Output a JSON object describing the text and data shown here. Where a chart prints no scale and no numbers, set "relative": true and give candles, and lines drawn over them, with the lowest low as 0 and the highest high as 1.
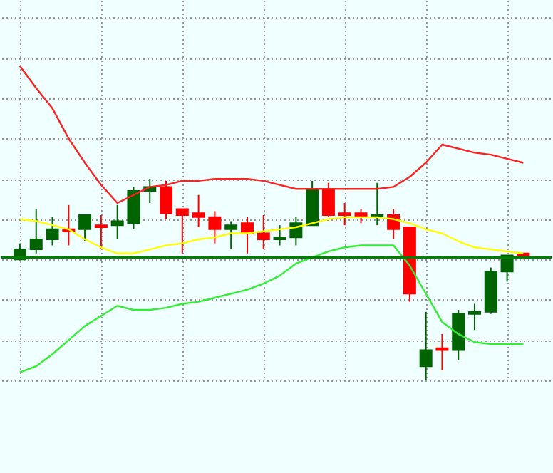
{
  "chart_data": {
    "type": "candlestick",
    "relative": true,
    "grid": true,
    "tick_labels": false,
    "categories": [
      null,
      null,
      null,
      null,
      null,
      null,
      null,
      null,
      null,
      null,
      null,
      null,
      null,
      null,
      null,
      null,
      null,
      null,
      null,
      null,
      null,
      null,
      null,
      null,
      null,
      null,
      null,
      null,
      null,
      null,
      null,
      null
    ],
    "ohlc": [
      [
        0.6,
        0.68,
        0.6,
        0.65
      ],
      [
        0.65,
        0.85,
        0.63,
        0.7
      ],
      [
        0.7,
        0.81,
        0.67,
        0.75
      ],
      [
        0.75,
        0.87,
        0.67,
        0.74
      ],
      [
        0.75,
        0.82,
        0.69,
        0.82
      ],
      [
        0.77,
        0.82,
        0.65,
        0.76
      ],
      [
        0.77,
        0.87,
        0.7,
        0.79
      ],
      [
        0.78,
        0.96,
        0.75,
        0.94
      ],
      [
        0.94,
        1.0,
        0.88,
        0.96
      ],
      [
        0.96,
        0.99,
        0.8,
        0.83
      ],
      [
        0.85,
        0.85,
        0.63,
        0.82
      ],
      [
        0.83,
        0.92,
        0.76,
        0.81
      ],
      [
        0.81,
        0.84,
        0.68,
        0.75
      ],
      [
        0.75,
        0.79,
        0.65,
        0.77
      ],
      [
        0.78,
        0.81,
        0.63,
        0.73
      ],
      [
        0.73,
        0.82,
        0.65,
        0.7
      ],
      [
        0.7,
        0.77,
        0.67,
        0.71
      ],
      [
        0.71,
        0.81,
        0.67,
        0.78
      ],
      [
        0.77,
        0.99,
        0.77,
        0.95
      ],
      [
        0.95,
        0.98,
        0.81,
        0.82
      ],
      [
        0.83,
        0.88,
        0.77,
        0.82
      ],
      [
        0.83,
        0.85,
        0.78,
        0.81
      ],
      [
        0.81,
        0.98,
        0.77,
        0.82
      ],
      [
        0.82,
        0.85,
        0.7,
        0.75
      ],
      [
        0.76,
        0.76,
        0.39,
        0.43
      ],
      [
        0.07,
        0.34,
        0.0,
        0.15
      ],
      [
        0.16,
        0.23,
        0.05,
        0.15
      ],
      [
        0.15,
        0.35,
        0.1,
        0.33
      ],
      [
        0.33,
        0.38,
        0.25,
        0.34
      ],
      [
        0.34,
        0.56,
        0.33,
        0.54
      ],
      [
        0.54,
        0.62,
        0.49,
        0.62
      ],
      [
        0.63,
        0.63,
        0.6,
        0.62
      ]
    ],
    "colors": [
      "#006400",
      "#006400",
      "#006400",
      "#ff0000",
      "#006400",
      "#ff0000",
      "#006400",
      "#006400",
      "#006400",
      "#ff0000",
      "#ff0000",
      "#ff0000",
      "#ff0000",
      "#006400",
      "#ff0000",
      "#ff0000",
      "#006400",
      "#006400",
      "#006400",
      "#ff0000",
      "#ff0000",
      "#ff0000",
      "#006400",
      "#ff0000",
      "#ff0000",
      "#006400",
      "#ff0000",
      "#006400",
      "#006400",
      "#006400",
      "#006400",
      "#ff0000"
    ],
    "series": [
      {
        "type": "line",
        "color": "#ff2020",
        "values": [
          1.56,
          1.45,
          1.35,
          1.2,
          1.08,
          0.97,
          0.88,
          0.92,
          0.96,
          0.97,
          0.99,
          0.99,
          1.0,
          1.0,
          1.0,
          0.99,
          0.97,
          0.95,
          0.95,
          0.95,
          0.95,
          0.95,
          0.95,
          0.96,
          1.01,
          1.08,
          1.17,
          1.15,
          1.13,
          1.12,
          1.1,
          1.08
        ]
      },
      {
        "type": "line",
        "color": "#ffff00",
        "values": [
          0.8,
          0.79,
          0.77,
          0.75,
          0.7,
          0.66,
          0.63,
          0.63,
          0.65,
          0.67,
          0.68,
          0.7,
          0.71,
          0.73,
          0.73,
          0.74,
          0.75,
          0.76,
          0.78,
          0.8,
          0.81,
          0.81,
          0.81,
          0.8,
          0.78,
          0.75,
          0.73,
          0.69,
          0.66,
          0.65,
          0.64,
          0.63
        ]
      },
      {
        "type": "line",
        "color": "#33ee33",
        "values": [
          0.04,
          0.07,
          0.13,
          0.2,
          0.27,
          0.32,
          0.37,
          0.35,
          0.35,
          0.36,
          0.38,
          0.39,
          0.41,
          0.43,
          0.45,
          0.48,
          0.52,
          0.58,
          0.61,
          0.64,
          0.66,
          0.67,
          0.67,
          0.67,
          0.57,
          0.43,
          0.29,
          0.23,
          0.19,
          0.18,
          0.18,
          0.18
        ]
      }
    ],
    "ref_lines": [
      {
        "axis": "y",
        "value": 0.61,
        "color": "#008000"
      }
    ]
  }
}
